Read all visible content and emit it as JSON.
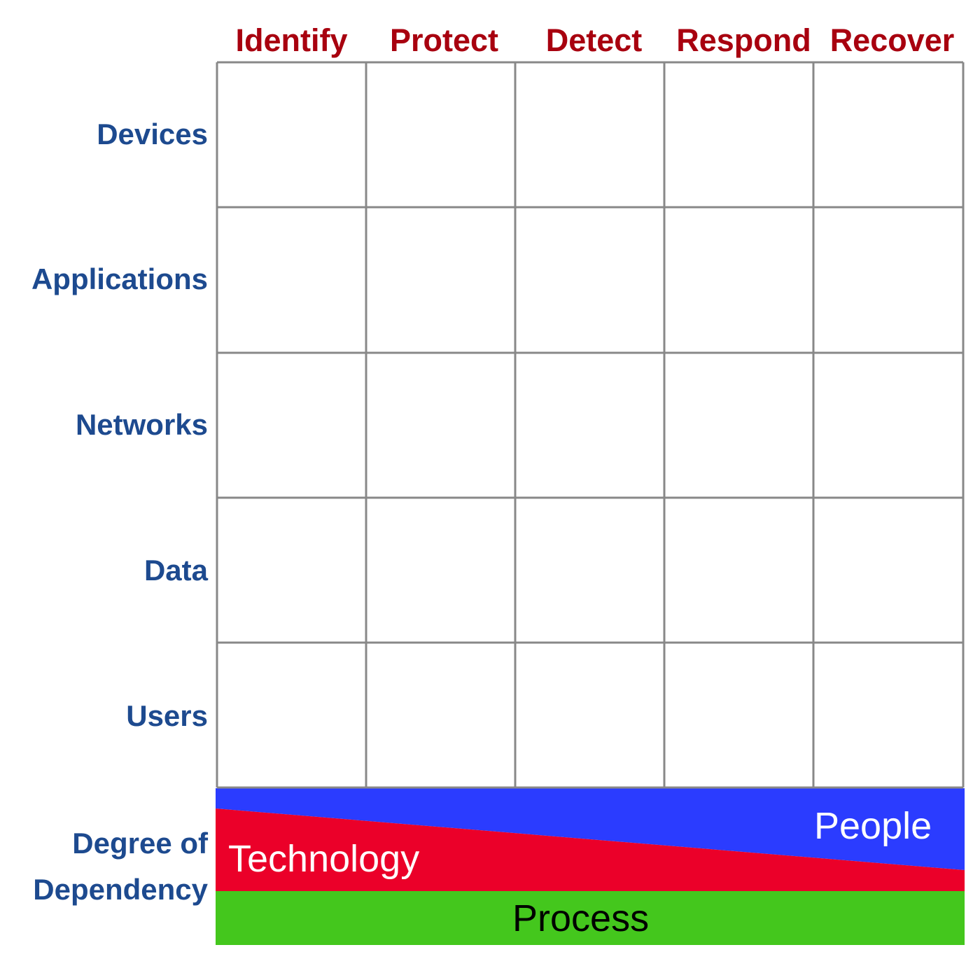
{
  "columns": [
    "Identify",
    "Protect",
    "Detect",
    "Respond",
    "Recover"
  ],
  "rows": [
    "Devices",
    "Applications",
    "Networks",
    "Data",
    "Users"
  ],
  "dependency": {
    "label_line1": "Degree of",
    "label_line2": "Dependency",
    "people": "People",
    "technology": "Technology",
    "process": "Process"
  },
  "colors": {
    "column_header": "#a8000f",
    "row_header": "#1d4a8f",
    "grid_line": "#888888",
    "people": "#2b3cff",
    "technology": "#eb0029",
    "process": "#44c71d"
  }
}
